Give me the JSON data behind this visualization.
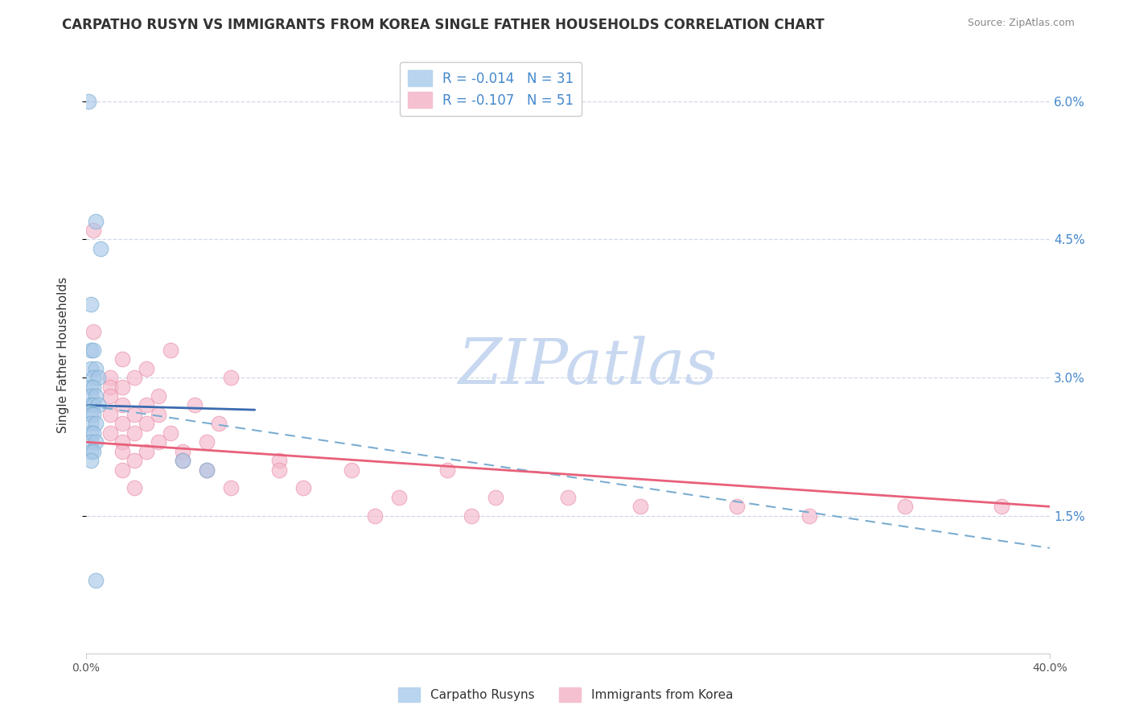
{
  "title": "CARPATHO RUSYN VS IMMIGRANTS FROM KOREA SINGLE FATHER HOUSEHOLDS CORRELATION CHART",
  "source": "Source: ZipAtlas.com",
  "ylabel": "Single Father Households",
  "legend_blue_r": "R = -0.014",
  "legend_blue_n": "N = 31",
  "legend_pink_r": "R = -0.107",
  "legend_pink_n": "N = 51",
  "legend_label_blue": "Carpatho Rusyns",
  "legend_label_pink": "Immigrants from Korea",
  "blue_scatter": [
    [
      0.001,
      0.06
    ],
    [
      0.004,
      0.047
    ],
    [
      0.006,
      0.044
    ],
    [
      0.002,
      0.038
    ],
    [
      0.002,
      0.033
    ],
    [
      0.003,
      0.033
    ],
    [
      0.002,
      0.031
    ],
    [
      0.004,
      0.031
    ],
    [
      0.003,
      0.03
    ],
    [
      0.005,
      0.03
    ],
    [
      0.002,
      0.029
    ],
    [
      0.003,
      0.029
    ],
    [
      0.002,
      0.028
    ],
    [
      0.004,
      0.028
    ],
    [
      0.002,
      0.027
    ],
    [
      0.003,
      0.027
    ],
    [
      0.005,
      0.027
    ],
    [
      0.002,
      0.026
    ],
    [
      0.003,
      0.026
    ],
    [
      0.002,
      0.025
    ],
    [
      0.004,
      0.025
    ],
    [
      0.002,
      0.024
    ],
    [
      0.003,
      0.024
    ],
    [
      0.002,
      0.023
    ],
    [
      0.004,
      0.023
    ],
    [
      0.002,
      0.022
    ],
    [
      0.003,
      0.022
    ],
    [
      0.002,
      0.021
    ],
    [
      0.04,
      0.021
    ],
    [
      0.05,
      0.02
    ],
    [
      0.004,
      0.008
    ]
  ],
  "pink_scatter": [
    [
      0.003,
      0.046
    ],
    [
      0.003,
      0.035
    ],
    [
      0.035,
      0.033
    ],
    [
      0.015,
      0.032
    ],
    [
      0.025,
      0.031
    ],
    [
      0.01,
      0.03
    ],
    [
      0.02,
      0.03
    ],
    [
      0.06,
      0.03
    ],
    [
      0.01,
      0.029
    ],
    [
      0.015,
      0.029
    ],
    [
      0.01,
      0.028
    ],
    [
      0.03,
      0.028
    ],
    [
      0.025,
      0.027
    ],
    [
      0.015,
      0.027
    ],
    [
      0.045,
      0.027
    ],
    [
      0.01,
      0.026
    ],
    [
      0.02,
      0.026
    ],
    [
      0.03,
      0.026
    ],
    [
      0.015,
      0.025
    ],
    [
      0.025,
      0.025
    ],
    [
      0.055,
      0.025
    ],
    [
      0.01,
      0.024
    ],
    [
      0.02,
      0.024
    ],
    [
      0.035,
      0.024
    ],
    [
      0.015,
      0.023
    ],
    [
      0.03,
      0.023
    ],
    [
      0.05,
      0.023
    ],
    [
      0.015,
      0.022
    ],
    [
      0.025,
      0.022
    ],
    [
      0.04,
      0.022
    ],
    [
      0.02,
      0.021
    ],
    [
      0.04,
      0.021
    ],
    [
      0.08,
      0.021
    ],
    [
      0.015,
      0.02
    ],
    [
      0.05,
      0.02
    ],
    [
      0.08,
      0.02
    ],
    [
      0.11,
      0.02
    ],
    [
      0.15,
      0.02
    ],
    [
      0.02,
      0.018
    ],
    [
      0.06,
      0.018
    ],
    [
      0.09,
      0.018
    ],
    [
      0.13,
      0.017
    ],
    [
      0.17,
      0.017
    ],
    [
      0.2,
      0.017
    ],
    [
      0.23,
      0.016
    ],
    [
      0.27,
      0.016
    ],
    [
      0.12,
      0.015
    ],
    [
      0.16,
      0.015
    ],
    [
      0.3,
      0.015
    ],
    [
      0.34,
      0.016
    ],
    [
      0.38,
      0.016
    ]
  ],
  "blue_solid_line": [
    [
      0.0,
      0.027
    ],
    [
      0.07,
      0.0265
    ]
  ],
  "blue_dashed_line": [
    [
      0.0,
      0.027
    ],
    [
      0.4,
      0.0115
    ]
  ],
  "pink_solid_line": [
    [
      0.0,
      0.023
    ],
    [
      0.4,
      0.016
    ]
  ],
  "xlim": [
    0.0,
    0.4
  ],
  "ylim": [
    0.0,
    0.065
  ],
  "ytick_vals": [
    0.015,
    0.03,
    0.045,
    0.06
  ],
  "ytick_labels": [
    "1.5%",
    "3.0%",
    "4.5%",
    "6.0%"
  ],
  "xtick_vals": [
    0.0,
    0.4
  ],
  "xtick_labels": [
    "0.0%",
    "40.0%"
  ],
  "bg_color": "#ffffff",
  "blue_scatter_color": "#a8c8e8",
  "blue_scatter_edge": "#7aadd0",
  "pink_scatter_color": "#f5b8cb",
  "pink_scatter_edge": "#e890a8",
  "blue_solid_color": "#3a6baf",
  "blue_dashed_color": "#7aadd0",
  "pink_solid_color": "#e8607a",
  "grid_color": "#d0d8e8",
  "title_color": "#333333",
  "source_color": "#888888",
  "ytick_color": "#4488cc",
  "xtick_color": "#555555",
  "watermark_color": "#c8d8f0",
  "title_fontsize": 12,
  "source_fontsize": 9,
  "scatter_size": 180,
  "scatter_alpha": 0.65
}
